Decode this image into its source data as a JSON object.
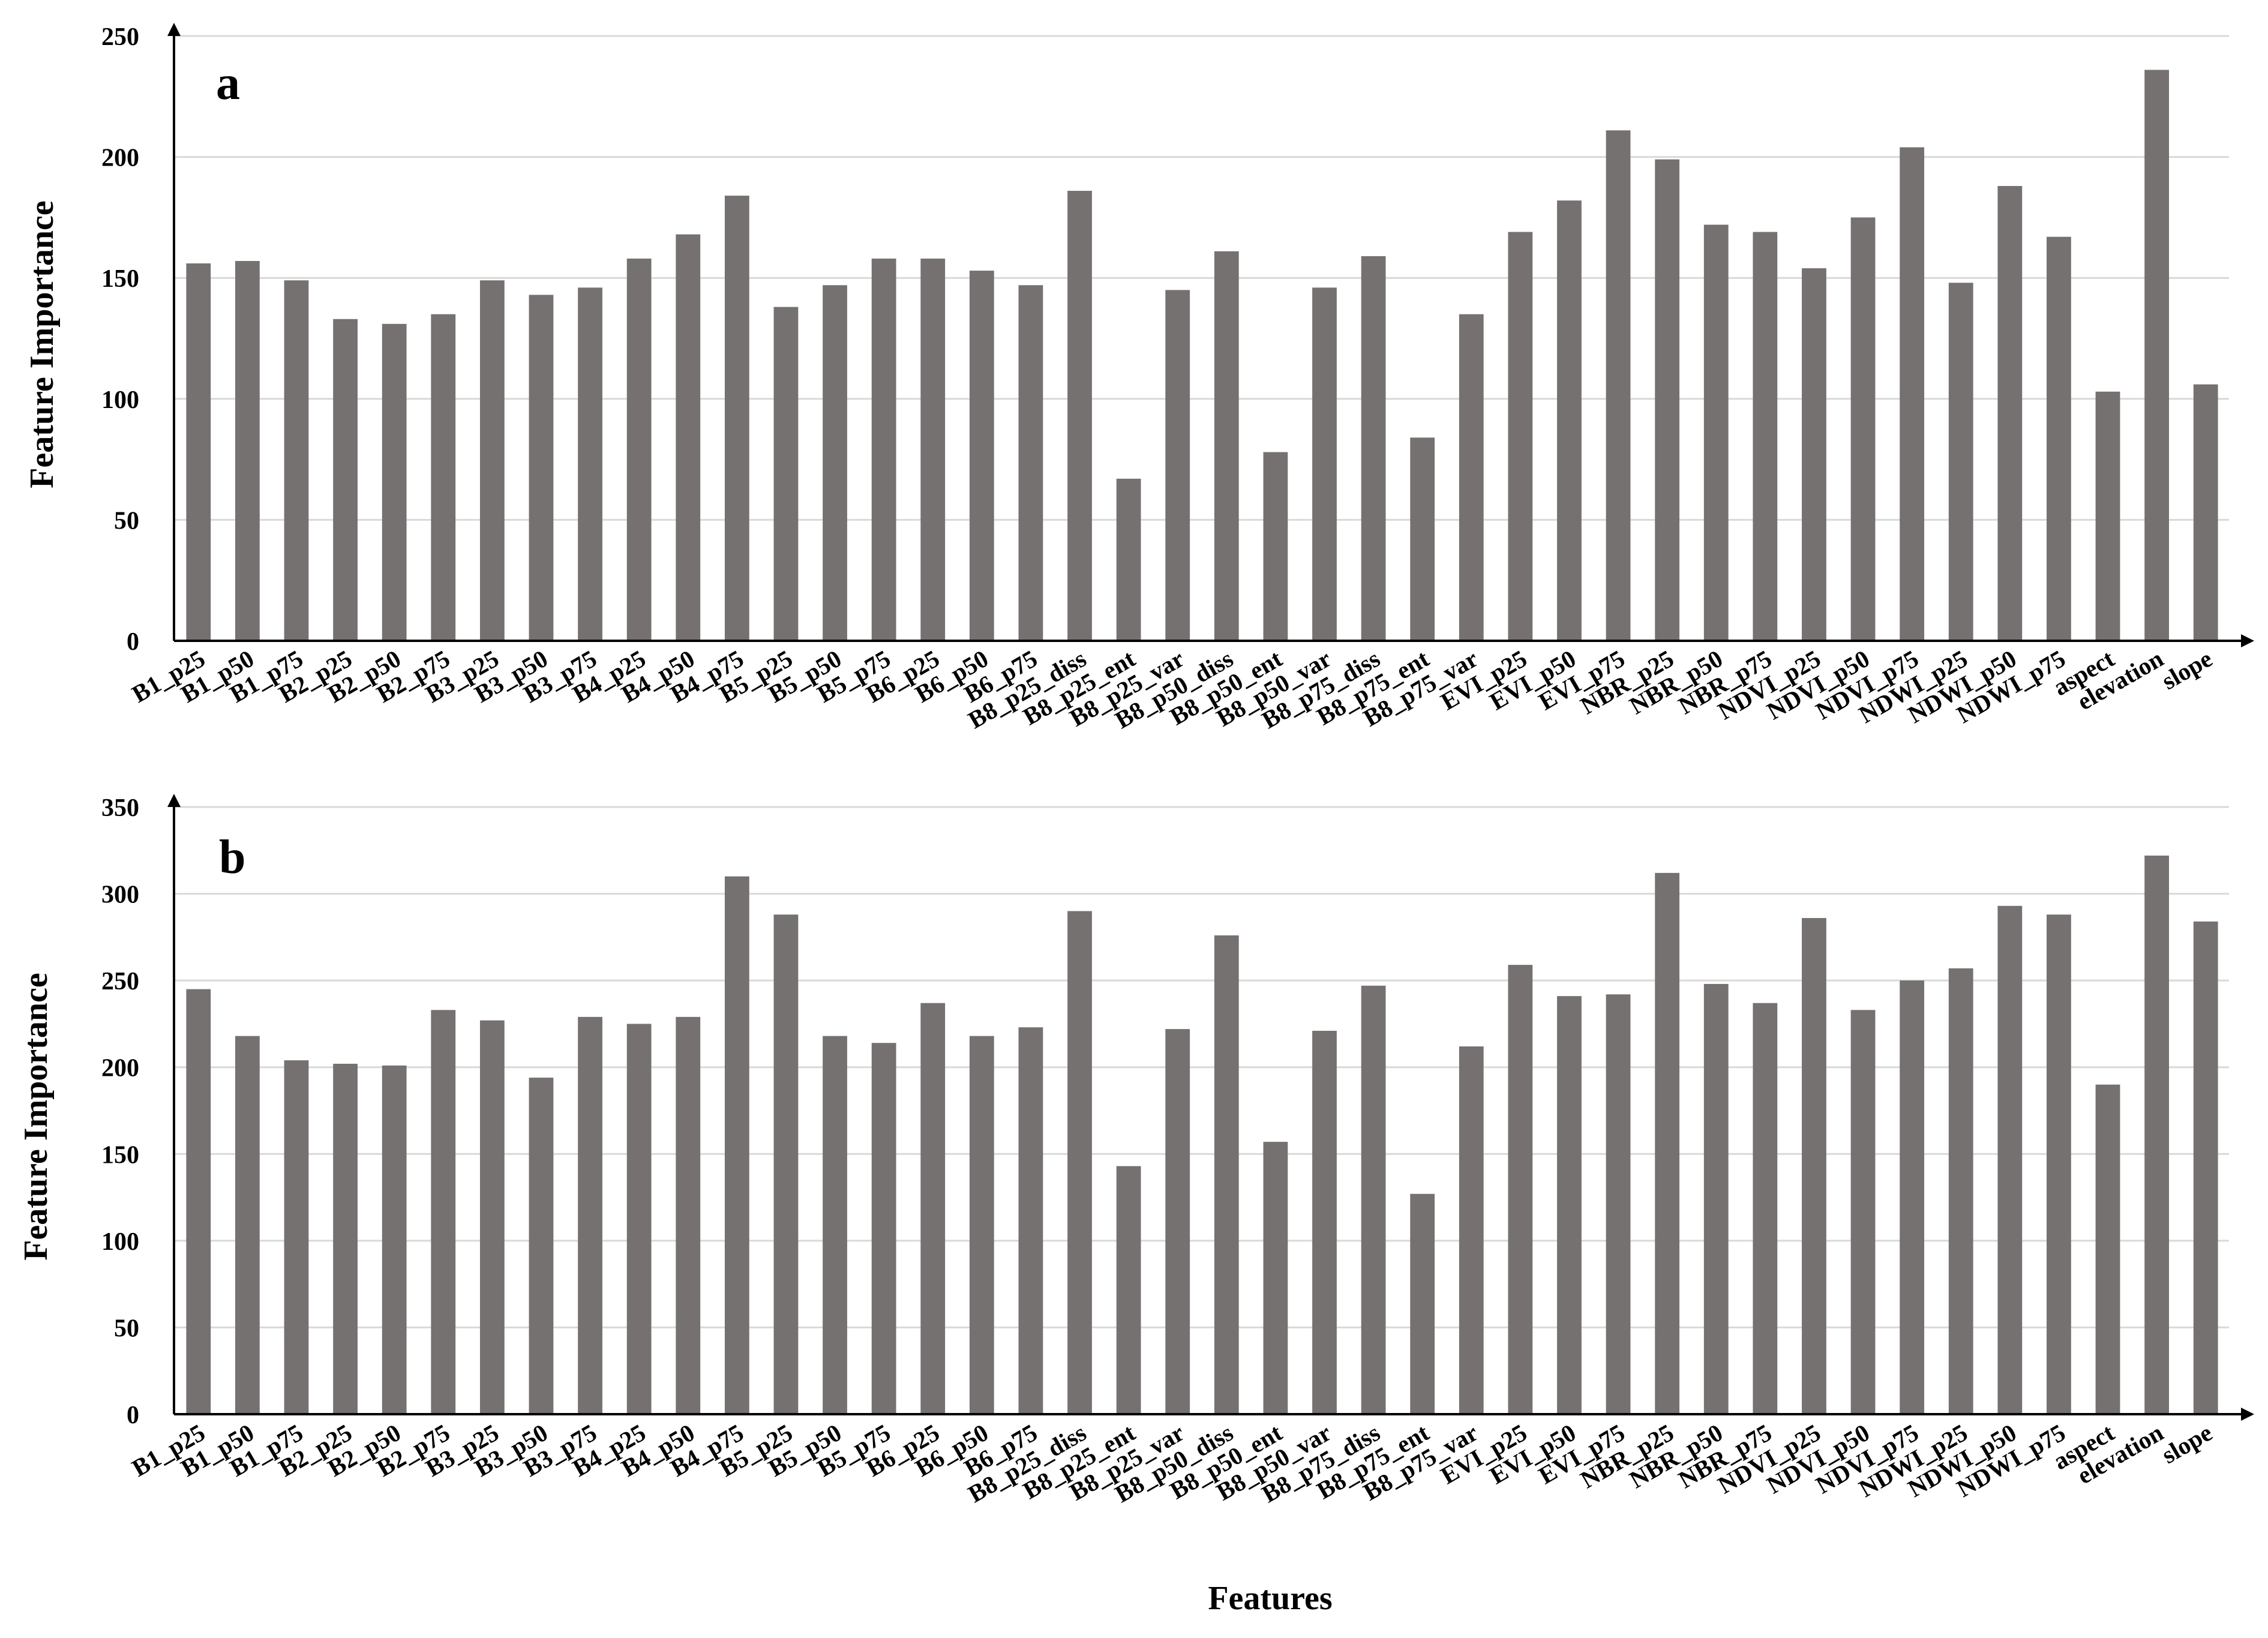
{
  "figure": {
    "xlabel": "Features",
    "bar_color": "#767171",
    "grid_color": "#d9d9d9",
    "axis_color": "#000000"
  },
  "chart_data": [
    {
      "type": "bar",
      "panel_label": "a",
      "ylabel": "Feature Importance",
      "xlabel": "",
      "ylim": [
        0,
        250
      ],
      "yticks": [
        0,
        50,
        100,
        150,
        200,
        250
      ],
      "grid": true,
      "categories": [
        "B1_p25",
        "B1_p50",
        "B1_p75",
        "B2_p25",
        "B2_p50",
        "B2_p75",
        "B3_p25",
        "B3_p50",
        "B3_p75",
        "B4_p25",
        "B4_p50",
        "B4_p75",
        "B5_p25",
        "B5_p50",
        "B5_p75",
        "B6_p25",
        "B6_p50",
        "B6_p75",
        "B8_p25_diss",
        "B8_p25_ent",
        "B8_p25_var",
        "B8_p50_diss",
        "B8_p50_ent",
        "B8_p50_var",
        "B8_p75_diss",
        "B8_p75_ent",
        "B8_p75_var",
        "EVI_p25",
        "EVI_p50",
        "EVI_p75",
        "NBR_p25",
        "NBR_p50",
        "NBR_p75",
        "NDVI_p25",
        "NDVI_p50",
        "NDVI_p75",
        "NDWI_p25",
        "NDWI_p50",
        "NDWI_p75",
        "aspect",
        "elevation",
        "slope"
      ],
      "values": [
        156,
        157,
        149,
        133,
        131,
        135,
        149,
        143,
        146,
        158,
        168,
        184,
        138,
        147,
        158,
        158,
        153,
        147,
        186,
        67,
        145,
        161,
        78,
        146,
        159,
        84,
        135,
        169,
        182,
        211,
        199,
        172,
        169,
        154,
        175,
        204,
        148,
        188,
        167,
        103,
        236,
        106
      ]
    },
    {
      "type": "bar",
      "panel_label": "b",
      "ylabel": "Feature Importance",
      "xlabel": "Features",
      "ylim": [
        0,
        350
      ],
      "yticks": [
        0,
        50,
        100,
        150,
        200,
        250,
        300,
        350
      ],
      "grid": true,
      "categories": [
        "B1_p25",
        "B1_p50",
        "B1_p75",
        "B2_p25",
        "B2_p50",
        "B2_p75",
        "B3_p25",
        "B3_p50",
        "B3_p75",
        "B4_p25",
        "B4_p50",
        "B4_p75",
        "B5_p25",
        "B5_p50",
        "B5_p75",
        "B6_p25",
        "B6_p50",
        "B6_p75",
        "B8_p25_diss",
        "B8_p25_ent",
        "B8_p25_var",
        "B8_p50_diss",
        "B8_p50_ent",
        "B8_p50_var",
        "B8_p75_diss",
        "B8_p75_ent",
        "B8_p75_var",
        "EVI_p25",
        "EVI_p50",
        "EVI_p75",
        "NBR_p25",
        "NBR_p50",
        "NBR_p75",
        "NDVI_p25",
        "NDVI_p50",
        "NDVI_p75",
        "NDWI_p25",
        "NDWI_p50",
        "NDWI_p75",
        "aspect",
        "elevation",
        "slope"
      ],
      "values": [
        245,
        218,
        204,
        202,
        201,
        233,
        227,
        194,
        229,
        225,
        229,
        310,
        288,
        218,
        214,
        237,
        218,
        223,
        290,
        143,
        222,
        276,
        157,
        221,
        247,
        127,
        212,
        259,
        241,
        242,
        312,
        248,
        237,
        286,
        233,
        250,
        257,
        293,
        288,
        190,
        322,
        284
      ]
    }
  ]
}
